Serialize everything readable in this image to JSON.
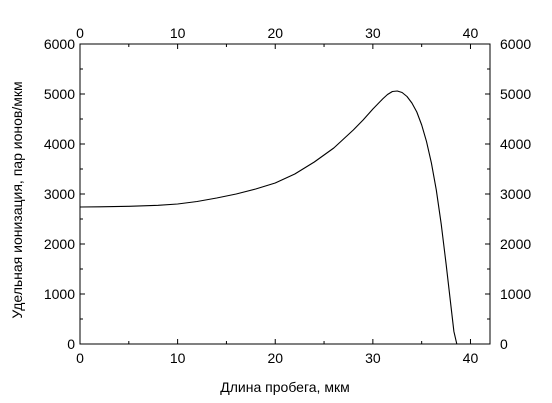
{
  "chart_data": {
    "type": "line",
    "xlabel": "Длина пробега, мкм",
    "ylabel": "Удельная ионизация, пар ионов/мкм",
    "xlim": [
      0,
      42
    ],
    "ylim": [
      0,
      6000
    ],
    "x_ticks": [
      0,
      10,
      20,
      30,
      40
    ],
    "y_ticks": [
      0,
      1000,
      2000,
      3000,
      4000,
      5000,
      6000
    ],
    "x_tick_labels": [
      "0",
      "10",
      "20",
      "30",
      "40"
    ],
    "y_tick_labels": [
      "0",
      "1000",
      "2000",
      "3000",
      "4000",
      "5000",
      "6000"
    ],
    "top_axis_labels": true,
    "right_axis_labels": true,
    "grid": false,
    "series": [
      {
        "color": "#000000",
        "x": [
          0,
          2,
          5,
          8,
          10,
          12,
          14,
          16,
          18,
          20,
          22,
          24,
          26,
          28,
          29,
          30,
          31,
          31.5,
          32,
          32.5,
          33,
          33.5,
          34,
          34.5,
          35,
          35.5,
          36,
          36.5,
          37,
          37.5,
          38,
          38.3,
          38.6
        ],
        "y": [
          2740,
          2745,
          2755,
          2775,
          2800,
          2850,
          2920,
          3000,
          3100,
          3220,
          3400,
          3640,
          3920,
          4280,
          4480,
          4700,
          4900,
          4990,
          5050,
          5060,
          5030,
          4950,
          4820,
          4640,
          4380,
          4050,
          3620,
          3080,
          2400,
          1600,
          750,
          250,
          0
        ]
      }
    ]
  }
}
